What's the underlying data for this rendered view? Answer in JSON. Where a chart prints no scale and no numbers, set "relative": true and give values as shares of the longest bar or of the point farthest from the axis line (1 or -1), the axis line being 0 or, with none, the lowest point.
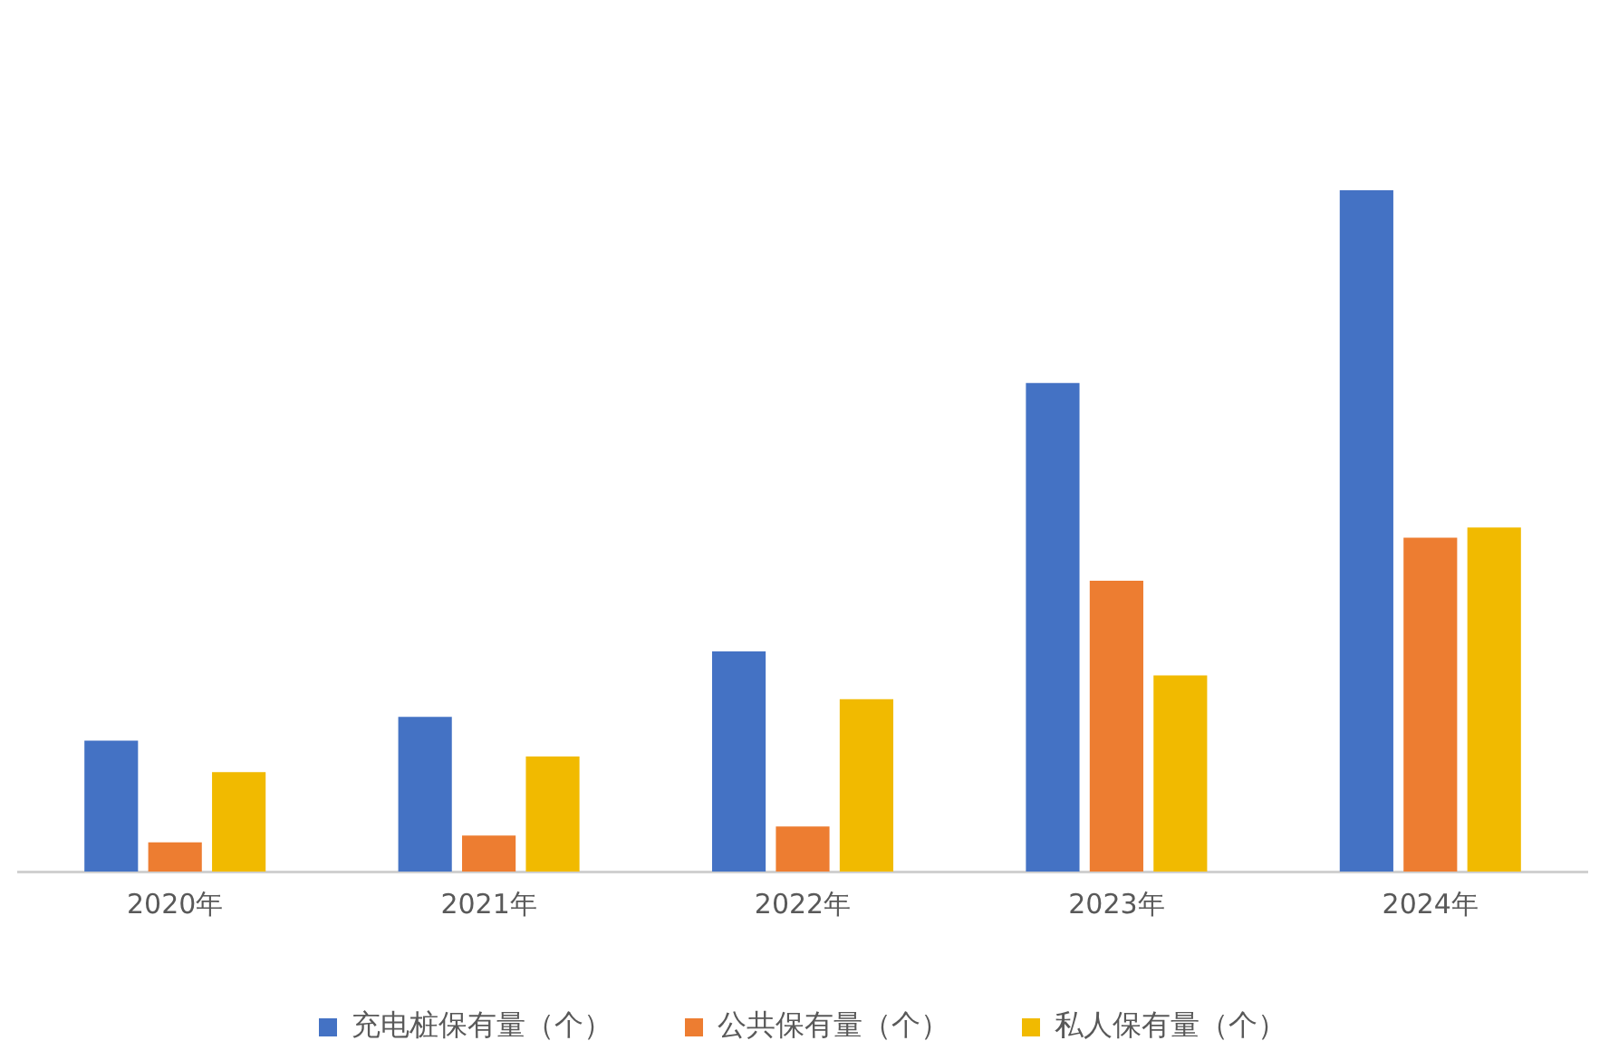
{
  "chart_data": {
    "type": "bar",
    "relative": true,
    "categories": [
      "2020年",
      "2021年",
      "2022年",
      "2023年",
      "2024年"
    ],
    "series": [
      {
        "name": "充电桩保有量（个）",
        "color": "#4472c4",
        "values": [
          0.192,
          0.227,
          0.323,
          0.717,
          1
        ]
      },
      {
        "name": "公共保有量（个）",
        "color": "#ed7d31",
        "values": [
          0.043,
          0.053,
          0.066,
          0.427,
          0.49
        ]
      },
      {
        "name": "私人保有量（个）",
        "color": "#f1ba00",
        "values": [
          0.146,
          0.169,
          0.253,
          0.288,
          0.505
        ]
      }
    ],
    "grid": false,
    "legend": "bottom"
  }
}
